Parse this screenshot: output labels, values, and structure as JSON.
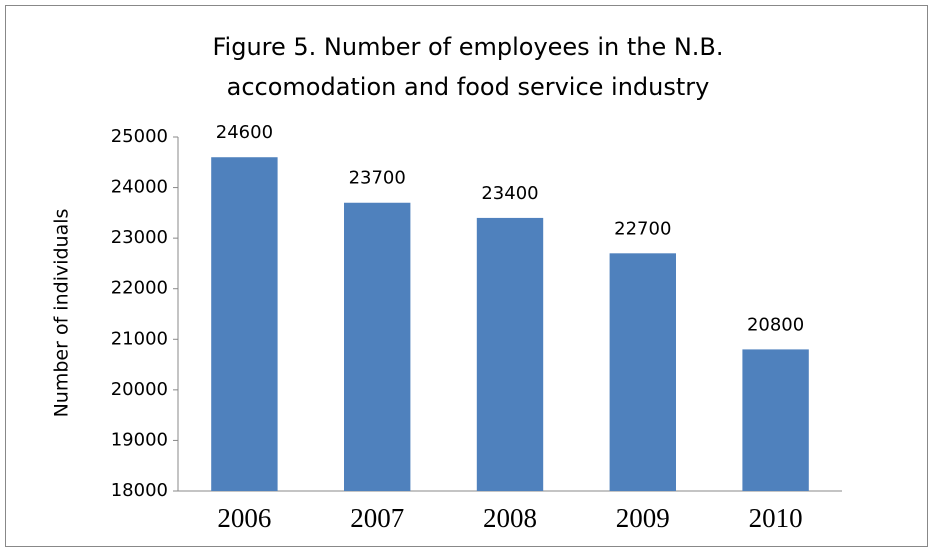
{
  "chart_data": {
    "type": "bar",
    "title": [
      "Figure 5. Number of employees in the N.B.",
      "accomodation and food service industry"
    ],
    "y_label": "Number of individuals",
    "categories": [
      "2006",
      "2007",
      "2008",
      "2009",
      "2010"
    ],
    "values": [
      24600,
      23700,
      23400,
      22700,
      20800
    ],
    "color": "#4f81bd",
    "ylim": [
      18000,
      25000
    ],
    "yticks": [
      18000,
      19000,
      20000,
      21000,
      22000,
      23000,
      24000,
      25000
    ],
    "grid": false
  }
}
